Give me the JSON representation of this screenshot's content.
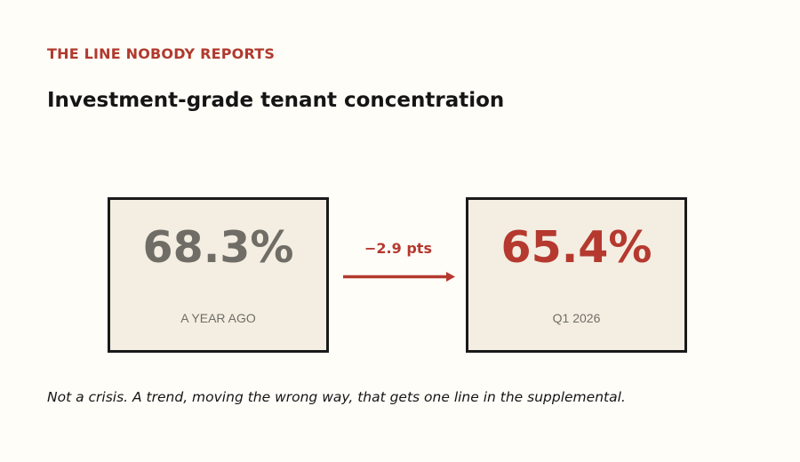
{
  "header": {
    "kicker": "THE LINE NOBODY REPORTS",
    "title": "Investment-grade tenant concentration"
  },
  "cards": [
    {
      "value": "68.3%",
      "label": "A YEAR AGO"
    },
    {
      "value": "65.4%",
      "label": "Q1 2026"
    }
  ],
  "change": "−2.9 pts",
  "footnote": "Not a crisis. A trend, moving the wrong way, that gets one line in the supplemental."
}
